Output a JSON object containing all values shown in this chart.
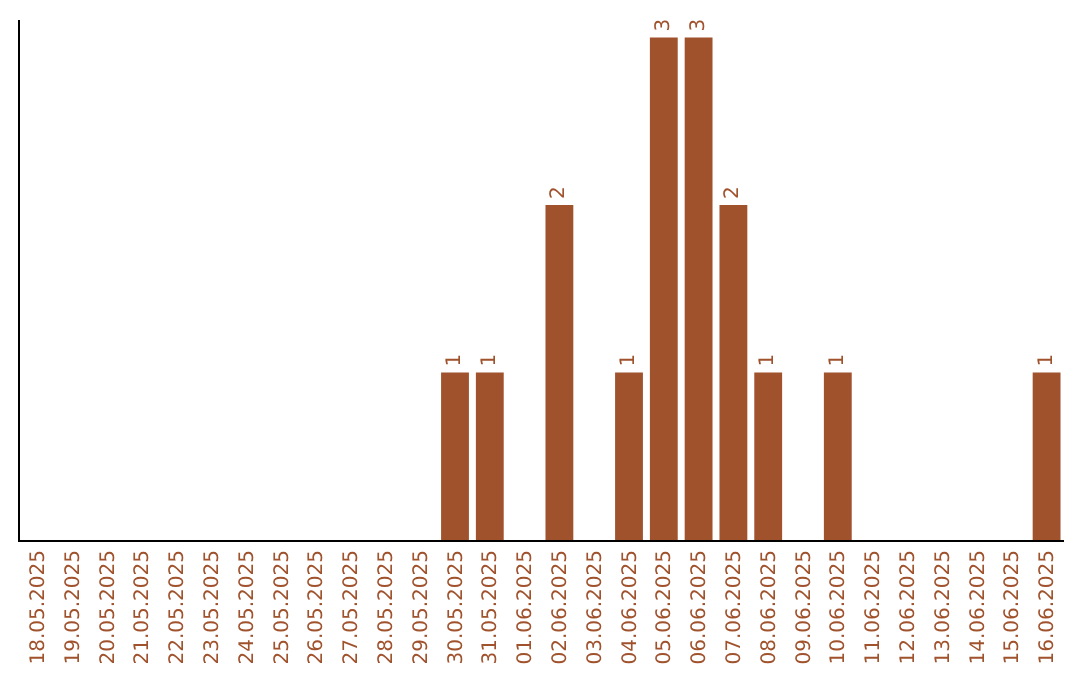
{
  "chart_data": {
    "type": "bar",
    "categories": [
      "18.05.2025",
      "19.05.2025",
      "20.05.2025",
      "21.05.2025",
      "22.05.2025",
      "23.05.2025",
      "24.05.2025",
      "25.05.2025",
      "26.05.2025",
      "27.05.2025",
      "28.05.2025",
      "29.05.2025",
      "30.05.2025",
      "31.05.2025",
      "01.06.2025",
      "02.06.2025",
      "03.06.2025",
      "04.06.2025",
      "05.06.2025",
      "06.06.2025",
      "07.06.2025",
      "08.06.2025",
      "09.06.2025",
      "10.06.2025",
      "11.06.2025",
      "12.06.2025",
      "13.06.2025",
      "14.06.2025",
      "15.06.2025",
      "16.06.2025"
    ],
    "values": [
      null,
      null,
      null,
      null,
      null,
      null,
      null,
      null,
      null,
      null,
      null,
      null,
      1,
      1,
      null,
      2,
      null,
      1,
      3,
      3,
      2,
      1,
      null,
      1,
      null,
      null,
      null,
      null,
      null,
      1
    ],
    "data_labels": true,
    "color": "#a0522d",
    "tick_labels": "x"
  }
}
